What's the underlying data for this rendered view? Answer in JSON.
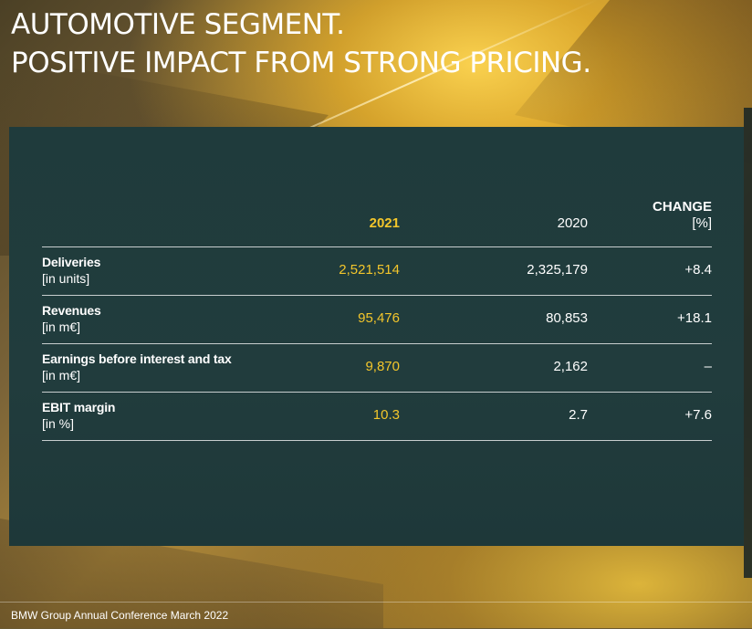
{
  "title": {
    "line1": "AUTOMOTIVE SEGMENT.",
    "line2": "POSITIVE IMPACT FROM STRONG PRICING."
  },
  "table": {
    "headers": {
      "col_2021": "2021",
      "col_2020": "2020",
      "col_change_line1": "CHANGE",
      "col_change_line2": "[%]"
    },
    "rows": [
      {
        "label": "Deliveries",
        "unit": "[in units]",
        "v2021": "2,521,514",
        "v2020": "2,325,179",
        "change": "+8.4"
      },
      {
        "label": "Revenues",
        "unit": "[in m€]",
        "v2021": "95,476",
        "v2020": "80,853",
        "change": "+18.1"
      },
      {
        "label": "Earnings before interest and tax",
        "unit": "[in m€]",
        "v2021": "9,870",
        "v2020": "2,162",
        "change": "–"
      },
      {
        "label": "EBIT margin",
        "unit": "[in %]",
        "v2021": "10.3",
        "v2020": "2.7",
        "change": "+7.6"
      }
    ]
  },
  "footer": {
    "text": "BMW Group Annual Conference March 2022"
  },
  "colors": {
    "highlight": "#f3c62b",
    "panel": "#1f3a3b",
    "text": "#ffffff"
  }
}
